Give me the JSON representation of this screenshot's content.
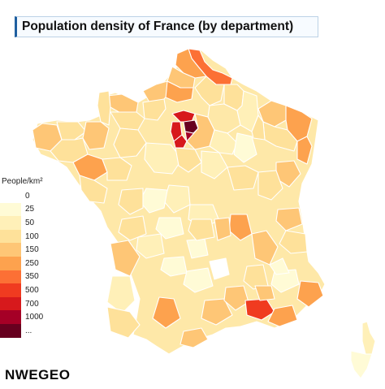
{
  "title": "Population density of France (by department)",
  "legend": {
    "title": "People/km²",
    "items": [
      {
        "label": "0",
        "color": "#ffffff"
      },
      {
        "label": "25",
        "color": "#fffbd6"
      },
      {
        "label": "50",
        "color": "#fff0b8"
      },
      {
        "label": "100",
        "color": "#fee19a"
      },
      {
        "label": "150",
        "color": "#fec676"
      },
      {
        "label": "250",
        "color": "#fda24e"
      },
      {
        "label": "350",
        "color": "#fc7035"
      },
      {
        "label": "500",
        "color": "#f03b20"
      },
      {
        "label": "700",
        "color": "#d7191c"
      },
      {
        "label": "1000",
        "color": "#a50026"
      },
      {
        "label": "...",
        "color": "#67001f"
      }
    ]
  },
  "brand": "NWEGEO"
}
